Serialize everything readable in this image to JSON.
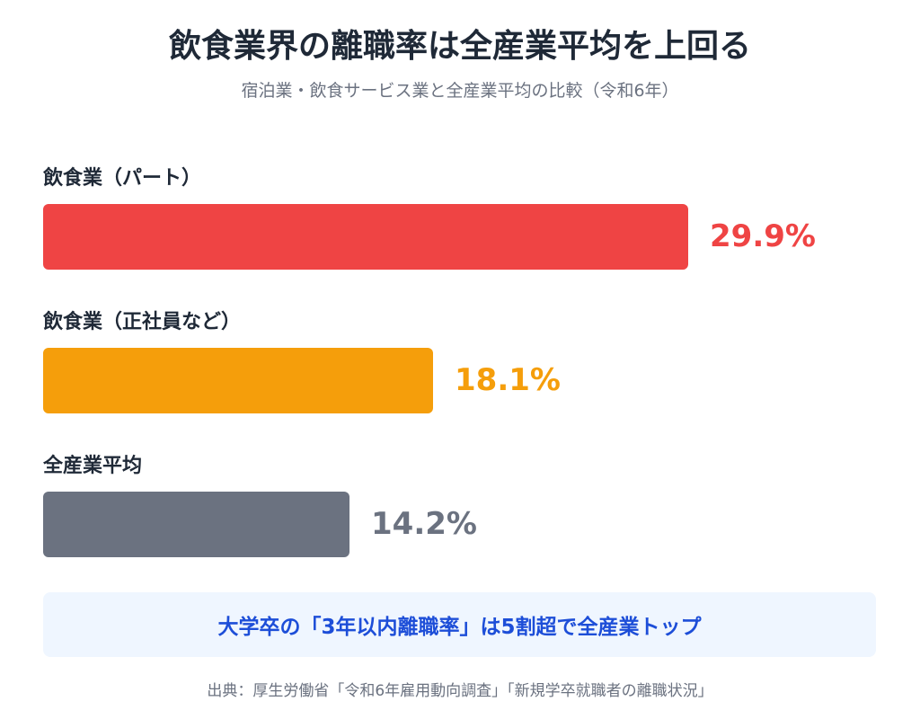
{
  "chart_data": {
    "type": "bar",
    "orientation": "horizontal",
    "title": "飲食業界の離職率は全産業平均を上回る",
    "subtitle": "宿泊業・飲食サービス業と全産業平均の比較（令和6年）",
    "categories": [
      "飲食業（パート）",
      "飲食業（正社員など）",
      "全産業平均"
    ],
    "values": [
      29.9,
      18.1,
      14.2
    ],
    "value_labels": [
      "29.9%",
      "18.1%",
      "14.2%"
    ],
    "unit": "%",
    "xlim": [
      0,
      30
    ],
    "grid": false,
    "legend": "none",
    "colors": [
      "#ef4444",
      "#f59e0b",
      "#6b7280"
    ],
    "annotation": "大学卒の「3年以内離職率」は5割超で全産業トップ",
    "source": "出典：厚生労働省「令和6年雇用動向調査」「新規学卒就職者の離職状況」"
  }
}
